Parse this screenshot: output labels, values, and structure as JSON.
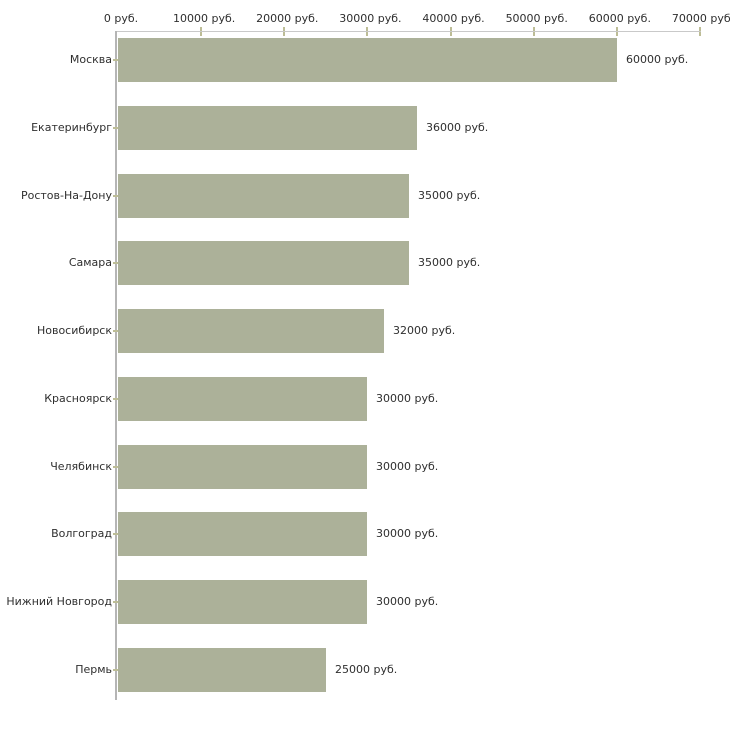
{
  "chart_data": {
    "type": "bar",
    "orientation": "horizontal",
    "unit": "руб.",
    "categories": [
      "Москва",
      "Екатеринбург",
      "Ростов-На-Дону",
      "Самара",
      "Новосибирск",
      "Красноярск",
      "Челябинск",
      "Волгоград",
      "Нижний Новгород",
      "Пермь"
    ],
    "values": [
      60000,
      36000,
      35000,
      35000,
      32000,
      30000,
      30000,
      30000,
      30000,
      25000
    ],
    "value_labels": [
      "60000 руб.",
      "36000 руб.",
      "35000 руб.",
      "35000 руб.",
      "32000 руб.",
      "30000 руб.",
      "30000 руб.",
      "30000 руб.",
      "30000 руб.",
      "25000 руб."
    ],
    "x_axis": {
      "min": 0,
      "max": 70000,
      "tick_step": 10000,
      "tick_labels": [
        "0 руб.",
        "10000 руб.",
        "20000 руб.",
        "30000 руб.",
        "40000 руб.",
        "50000 руб.",
        "60000 руб.",
        "70000 руб."
      ],
      "position": "top"
    },
    "grid": false,
    "legend": false,
    "colors": {
      "bar": "#acb199",
      "axis_line": "#c9c9c9",
      "y_axis_line": "#b5b5b5",
      "tick": "#bdbd96",
      "text": "#2f2f2f",
      "background": "#ffffff"
    }
  }
}
